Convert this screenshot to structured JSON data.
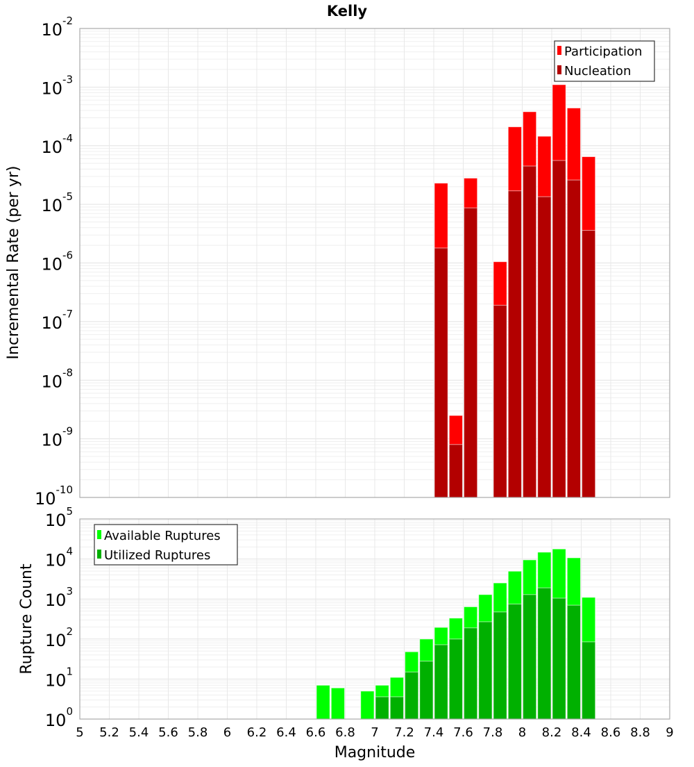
{
  "chart_data": [
    {
      "type": "bar",
      "title": "Kelly",
      "xlabel": "Magnitude",
      "ylabel": "Incremental Rate (per yr)",
      "yscale": "log",
      "ylim": [
        1e-10,
        0.01
      ],
      "xlim": [
        5,
        9
      ],
      "grid": true,
      "legend": "top-right",
      "y_tick_exponents": [
        "-10",
        "-9",
        "-8",
        "-7",
        "-6",
        "-5",
        "-4",
        "-3",
        "-2"
      ],
      "bin_centers": [
        7.45,
        7.55,
        7.65,
        7.85,
        7.95,
        8.05,
        8.15,
        8.25,
        8.35,
        8.45
      ],
      "series": [
        {
          "name": "Participation",
          "color": "#ff0000",
          "values": [
            2.3e-05,
            2.5e-09,
            2.8e-05,
            1.05e-06,
            0.00021,
            0.00038,
            0.000145,
            0.0011,
            0.00044,
            6.5e-05
          ]
        },
        {
          "name": "Nucleation",
          "color": "#b30000",
          "values": [
            1.8e-06,
            8e-10,
            8.7e-06,
            1.9e-07,
            1.7e-05,
            4.5e-05,
            1.35e-05,
            5.6e-05,
            2.6e-05,
            3.6e-06
          ]
        }
      ]
    },
    {
      "type": "bar",
      "xlabel": "Magnitude",
      "ylabel": "Rupture Count",
      "yscale": "log",
      "ylim": [
        1,
        100000.0
      ],
      "xlim": [
        5,
        9
      ],
      "grid": true,
      "legend": "top-left",
      "y_tick_exponents": [
        "0",
        "1",
        "2",
        "3",
        "4",
        "5"
      ],
      "x_ticks": [
        "5",
        "5.2",
        "5.4",
        "5.6",
        "5.8",
        "6",
        "6.2",
        "6.4",
        "6.6",
        "6.8",
        "7",
        "7.2",
        "7.4",
        "7.6",
        "7.8",
        "8",
        "8.2",
        "8.4",
        "8.6",
        "8.8",
        "9"
      ],
      "bin_centers": [
        6.65,
        6.75,
        6.95,
        7.05,
        7.15,
        7.25,
        7.35,
        7.45,
        7.55,
        7.65,
        7.75,
        7.85,
        7.95,
        8.05,
        8.15,
        8.25,
        8.35,
        8.45
      ],
      "series": [
        {
          "name": "Available Ruptures",
          "color": "#00ff00",
          "values": [
            7,
            6,
            5,
            7,
            11,
            48,
            100,
            195,
            333,
            640,
            1290,
            2520,
            4950,
            9500,
            14800,
            17800,
            10700,
            1100
          ]
        },
        {
          "name": "Utilized Ruptures",
          "color": "#00b000",
          "values": [
            null,
            null,
            null,
            3.6,
            3.6,
            15,
            28,
            72,
            100,
            190,
            270,
            475,
            750,
            1290,
            1900,
            1050,
            700,
            85
          ]
        }
      ]
    }
  ]
}
